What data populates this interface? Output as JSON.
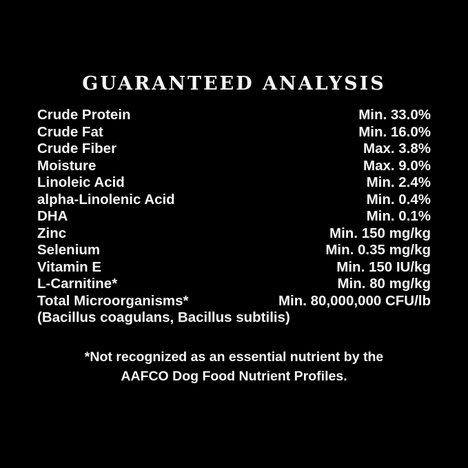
{
  "page": {
    "background_color": "#000000",
    "text_color": "#f6f6f6"
  },
  "title": "GUARANTEED ANALYSIS",
  "analysis": {
    "rows": [
      {
        "label": "Crude Protein",
        "value": "Min. 33.0%"
      },
      {
        "label": "Crude Fat",
        "value": "Min. 16.0%"
      },
      {
        "label": "Crude Fiber",
        "value": "Max. 3.8%"
      },
      {
        "label": "Moisture",
        "value": "Max. 9.0%"
      },
      {
        "label": "Linoleic Acid",
        "value": "Min. 2.4%"
      },
      {
        "label": "alpha-Linolenic Acid",
        "value": "Min. 0.4%"
      },
      {
        "label": "DHA",
        "value": "Min. 0.1%"
      },
      {
        "label": "Zinc",
        "value": "Min. 150 mg/kg"
      },
      {
        "label": "Selenium",
        "value": "Min. 0.35 mg/kg"
      },
      {
        "label": "Vitamin E",
        "value": "Min. 150 IU/kg"
      },
      {
        "label": "L-Carnitine*",
        "value": "Min. 80 mg/kg"
      },
      {
        "label": "Total Microorganisms*",
        "value": "Min. 80,000,000 CFU/lb"
      }
    ],
    "subline": "(Bacillus coagulans, Bacillus subtilis)"
  },
  "footnote": {
    "line1": "*Not recognized as an essential nutrient by the",
    "line2": "AAFCO Dog Food Nutrient Profiles."
  }
}
